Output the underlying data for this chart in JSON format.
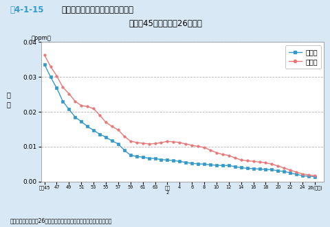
{
  "title_zu": "図4-1-15",
  "title_main": "　二酸化硫黄濃度の年平均値の推移",
  "title_line2": "（昭和45年度～平成26年度）",
  "ylabel_top": "（ppm）",
  "ylabel_side": "濃\n度",
  "xlabel_bottom": "資料：環境省「平成26年度大気汚染状況について（報道発表資料）」",
  "legend_ippan": "一般局",
  "legend_jihai": "自排局",
  "bg_color": "#d8e8f4",
  "plot_bg_color": "#ffffff",
  "ippan_color": "#3399cc",
  "jihai_color": "#e87878",
  "zu_color": "#3399cc",
  "ylim": [
    0,
    0.04
  ],
  "yticks": [
    0,
    0.01,
    0.02,
    0.03,
    0.04
  ],
  "xtick_positions": [
    1970,
    1972,
    1974,
    1976,
    1978,
    1980,
    1982,
    1984,
    1986,
    1988,
    1990,
    1992,
    1994,
    1996,
    1998,
    2000,
    2002,
    2004,
    2006,
    2008,
    2010,
    2012,
    2014
  ],
  "xtick_labels": [
    "昭和45",
    "47",
    "49",
    "51",
    "53",
    "55",
    "57",
    "59",
    "61",
    "63",
    "平成\n2",
    "4",
    "6",
    "8",
    "10",
    "12",
    "14",
    "16",
    "18",
    "20",
    "22",
    "24",
    "26(年度)"
  ],
  "ippan_x": [
    1970,
    1971,
    1972,
    1973,
    1974,
    1975,
    1976,
    1977,
    1978,
    1979,
    1980,
    1981,
    1982,
    1983,
    1984,
    1985,
    1986,
    1987,
    1988,
    1989,
    1990,
    1991,
    1992,
    1993,
    1994,
    1995,
    1996,
    1997,
    1998,
    1999,
    2000,
    2001,
    2002,
    2003,
    2004,
    2005,
    2006,
    2007,
    2008,
    2009,
    2010,
    2011,
    2012,
    2013,
    2014
  ],
  "ippan_y": [
    0.0336,
    0.03,
    0.0268,
    0.023,
    0.0207,
    0.0185,
    0.0172,
    0.0158,
    0.0147,
    0.0136,
    0.0127,
    0.0117,
    0.0108,
    0.009,
    0.0076,
    0.0072,
    0.007,
    0.0067,
    0.0066,
    0.0063,
    0.0062,
    0.006,
    0.0058,
    0.0055,
    0.0052,
    0.0051,
    0.005,
    0.0048,
    0.0047,
    0.0046,
    0.0046,
    0.0043,
    0.004,
    0.0038,
    0.0037,
    0.0036,
    0.0035,
    0.0034,
    0.0031,
    0.0029,
    0.0025,
    0.0021,
    0.0017,
    0.0015,
    0.0014
  ],
  "jihai_x": [
    1970,
    1971,
    1972,
    1973,
    1974,
    1975,
    1976,
    1977,
    1978,
    1979,
    1980,
    1981,
    1982,
    1983,
    1984,
    1985,
    1986,
    1987,
    1988,
    1989,
    1990,
    1991,
    1992,
    1993,
    1994,
    1995,
    1996,
    1997,
    1998,
    1999,
    2000,
    2001,
    2002,
    2003,
    2004,
    2005,
    2006,
    2007,
    2008,
    2009,
    2010,
    2011,
    2012,
    2013,
    2014
  ],
  "jihai_y": [
    0.0363,
    0.033,
    0.0303,
    0.027,
    0.0252,
    0.023,
    0.0218,
    0.0215,
    0.0209,
    0.019,
    0.017,
    0.0158,
    0.0148,
    0.013,
    0.0116,
    0.0112,
    0.011,
    0.0108,
    0.0109,
    0.0112,
    0.0115,
    0.0114,
    0.0112,
    0.0108,
    0.0104,
    0.0101,
    0.0098,
    0.009,
    0.0083,
    0.0078,
    0.0075,
    0.0068,
    0.0062,
    0.006,
    0.0058,
    0.0056,
    0.0054,
    0.005,
    0.0045,
    0.0039,
    0.0033,
    0.0027,
    0.0022,
    0.0019,
    0.0017
  ]
}
